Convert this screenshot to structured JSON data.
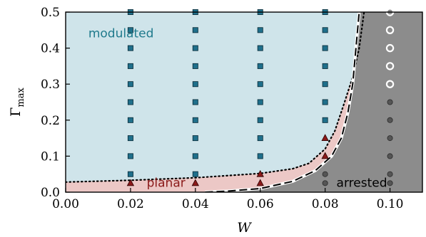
{
  "chart_data": {
    "type": "scatter",
    "xlabel": "W",
    "ylabel": "Γ",
    "ylabel_sub": "max",
    "xlim": [
      0.0,
      0.11
    ],
    "ylim": [
      0.0,
      0.5
    ],
    "x_ticks": [
      "0.00",
      "0.02",
      "0.04",
      "0.06",
      "0.08",
      "0.10"
    ],
    "y_ticks": [
      "0.0",
      "0.1",
      "0.2",
      "0.3",
      "0.4",
      "0.5"
    ],
    "x_tick_values": [
      0.0,
      0.02,
      0.04,
      0.06,
      0.08,
      0.1
    ],
    "y_tick_values": [
      0.0,
      0.1,
      0.2,
      0.3,
      0.4,
      0.5
    ],
    "grid": false,
    "regions": [
      {
        "label": "modulated",
        "color": "#cfe4ea",
        "text_color": "#1f7a8c",
        "label_x": 0.007,
        "label_y": 0.43
      },
      {
        "label": "planar",
        "color": "#ecc8c6",
        "text_color": "#8b1a1a",
        "label_x": 0.025,
        "label_y": 0.015
      },
      {
        "label": "arrested",
        "color": "#8c8c8c",
        "text_color": "#000000",
        "label_x": 0.0835,
        "label_y": 0.015
      }
    ],
    "boundaries": {
      "modulated_planar_dotted": [
        [
          0.0,
          0.028
        ],
        [
          0.02,
          0.033
        ],
        [
          0.04,
          0.04
        ],
        [
          0.06,
          0.052
        ],
        [
          0.07,
          0.065
        ],
        [
          0.075,
          0.08
        ],
        [
          0.08,
          0.12
        ],
        [
          0.083,
          0.17
        ],
        [
          0.086,
          0.25
        ],
        [
          0.0885,
          0.32
        ],
        [
          0.0905,
          0.4
        ],
        [
          0.092,
          0.5
        ]
      ],
      "planar_arrested_dashed": [
        [
          0.043,
          0.0
        ],
        [
          0.05,
          0.003
        ],
        [
          0.06,
          0.01
        ],
        [
          0.07,
          0.03
        ],
        [
          0.077,
          0.06
        ],
        [
          0.082,
          0.1
        ],
        [
          0.085,
          0.15
        ],
        [
          0.087,
          0.22
        ],
        [
          0.0885,
          0.3
        ],
        [
          0.0895,
          0.4
        ],
        [
          0.0905,
          0.5
        ]
      ]
    },
    "series": [
      {
        "marker": "square",
        "color": "#1f6f8b",
        "points": [
          [
            0.02,
            0.05
          ],
          [
            0.02,
            0.1
          ],
          [
            0.02,
            0.15
          ],
          [
            0.02,
            0.2
          ],
          [
            0.02,
            0.25
          ],
          [
            0.02,
            0.3
          ],
          [
            0.02,
            0.35
          ],
          [
            0.02,
            0.4
          ],
          [
            0.02,
            0.45
          ],
          [
            0.02,
            0.5
          ],
          [
            0.04,
            0.05
          ],
          [
            0.04,
            0.1
          ],
          [
            0.04,
            0.15
          ],
          [
            0.04,
            0.2
          ],
          [
            0.04,
            0.25
          ],
          [
            0.04,
            0.3
          ],
          [
            0.04,
            0.35
          ],
          [
            0.04,
            0.4
          ],
          [
            0.04,
            0.45
          ],
          [
            0.04,
            0.5
          ],
          [
            0.06,
            0.1
          ],
          [
            0.06,
            0.15
          ],
          [
            0.06,
            0.2
          ],
          [
            0.06,
            0.25
          ],
          [
            0.06,
            0.3
          ],
          [
            0.06,
            0.35
          ],
          [
            0.06,
            0.4
          ],
          [
            0.06,
            0.45
          ],
          [
            0.06,
            0.5
          ],
          [
            0.08,
            0.2
          ],
          [
            0.08,
            0.25
          ],
          [
            0.08,
            0.3
          ],
          [
            0.08,
            0.35
          ],
          [
            0.08,
            0.4
          ],
          [
            0.08,
            0.45
          ],
          [
            0.08,
            0.5
          ]
        ]
      },
      {
        "marker": "triangle",
        "color": "#8b1a1a",
        "points": [
          [
            0.02,
            0.025
          ],
          [
            0.04,
            0.025
          ],
          [
            0.06,
            0.025
          ],
          [
            0.06,
            0.05
          ],
          [
            0.08,
            0.1
          ],
          [
            0.08,
            0.15
          ]
        ]
      },
      {
        "marker": "circle-dark",
        "color": "#555555",
        "points": [
          [
            0.08,
            0.025
          ],
          [
            0.08,
            0.05
          ],
          [
            0.1,
            0.025
          ],
          [
            0.1,
            0.05
          ],
          [
            0.1,
            0.1
          ],
          [
            0.1,
            0.15
          ],
          [
            0.1,
            0.2
          ],
          [
            0.1,
            0.25
          ]
        ]
      },
      {
        "marker": "circle-open",
        "color": "#ffffff",
        "points": [
          [
            0.1,
            0.3
          ],
          [
            0.1,
            0.35
          ],
          [
            0.1,
            0.4
          ],
          [
            0.1,
            0.45
          ],
          [
            0.1,
            0.5
          ]
        ]
      }
    ]
  }
}
